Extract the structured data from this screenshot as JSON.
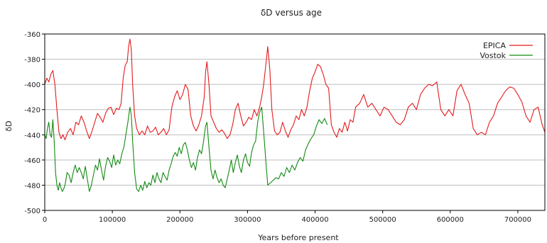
{
  "chart_data": {
    "type": "line",
    "title": "δD versus age",
    "xlabel": "Years before present",
    "ylabel": "δD",
    "xlim": [
      0,
      740000
    ],
    "ylim": [
      -500,
      -360
    ],
    "x_ticks": [
      0,
      100000,
      200000,
      300000,
      400000,
      500000,
      600000,
      700000
    ],
    "y_ticks": [
      -500,
      -480,
      -460,
      -440,
      -420,
      -400,
      -380,
      -360
    ],
    "grid": "horizontal",
    "legend_position": "top-right",
    "series": [
      {
        "name": "EPICA",
        "color": "#e41a1c",
        "points": [
          [
            0,
            -400
          ],
          [
            3000,
            -395
          ],
          [
            6000,
            -398
          ],
          [
            9000,
            -392
          ],
          [
            12000,
            -389
          ],
          [
            15000,
            -400
          ],
          [
            18000,
            -420
          ],
          [
            21000,
            -438
          ],
          [
            24000,
            -443
          ],
          [
            27000,
            -440
          ],
          [
            30000,
            -444
          ],
          [
            34000,
            -438
          ],
          [
            38000,
            -435
          ],
          [
            42000,
            -440
          ],
          [
            46000,
            -430
          ],
          [
            50000,
            -432
          ],
          [
            54000,
            -425
          ],
          [
            58000,
            -430
          ],
          [
            62000,
            -437
          ],
          [
            66000,
            -443
          ],
          [
            70000,
            -437
          ],
          [
            74000,
            -430
          ],
          [
            78000,
            -423
          ],
          [
            82000,
            -426
          ],
          [
            86000,
            -430
          ],
          [
            90000,
            -423
          ],
          [
            94000,
            -419
          ],
          [
            98000,
            -418
          ],
          [
            102000,
            -424
          ],
          [
            106000,
            -419
          ],
          [
            110000,
            -420
          ],
          [
            113000,
            -415
          ],
          [
            116000,
            -395
          ],
          [
            119000,
            -385
          ],
          [
            122000,
            -382
          ],
          [
            124000,
            -370
          ],
          [
            126000,
            -364
          ],
          [
            128000,
            -372
          ],
          [
            130000,
            -400
          ],
          [
            133000,
            -425
          ],
          [
            136000,
            -435
          ],
          [
            140000,
            -440
          ],
          [
            144000,
            -437
          ],
          [
            148000,
            -440
          ],
          [
            152000,
            -433
          ],
          [
            156000,
            -438
          ],
          [
            160000,
            -437
          ],
          [
            164000,
            -434
          ],
          [
            168000,
            -440
          ],
          [
            172000,
            -438
          ],
          [
            176000,
            -435
          ],
          [
            180000,
            -440
          ],
          [
            184000,
            -436
          ],
          [
            188000,
            -418
          ],
          [
            192000,
            -410
          ],
          [
            196000,
            -405
          ],
          [
            200000,
            -412
          ],
          [
            204000,
            -408
          ],
          [
            208000,
            -400
          ],
          [
            212000,
            -404
          ],
          [
            216000,
            -425
          ],
          [
            220000,
            -433
          ],
          [
            224000,
            -437
          ],
          [
            228000,
            -432
          ],
          [
            232000,
            -425
          ],
          [
            236000,
            -410
          ],
          [
            238000,
            -390
          ],
          [
            240000,
            -382
          ],
          [
            243000,
            -400
          ],
          [
            246000,
            -425
          ],
          [
            250000,
            -430
          ],
          [
            254000,
            -435
          ],
          [
            258000,
            -438
          ],
          [
            262000,
            -436
          ],
          [
            266000,
            -439
          ],
          [
            270000,
            -443
          ],
          [
            274000,
            -440
          ],
          [
            278000,
            -432
          ],
          [
            282000,
            -420
          ],
          [
            286000,
            -415
          ],
          [
            290000,
            -425
          ],
          [
            294000,
            -433
          ],
          [
            298000,
            -430
          ],
          [
            302000,
            -426
          ],
          [
            306000,
            -428
          ],
          [
            310000,
            -420
          ],
          [
            314000,
            -425
          ],
          [
            318000,
            -418
          ],
          [
            321000,
            -410
          ],
          [
            324000,
            -400
          ],
          [
            327000,
            -385
          ],
          [
            330000,
            -370
          ],
          [
            333000,
            -388
          ],
          [
            336000,
            -420
          ],
          [
            340000,
            -437
          ],
          [
            344000,
            -440
          ],
          [
            348000,
            -438
          ],
          [
            352000,
            -430
          ],
          [
            356000,
            -437
          ],
          [
            360000,
            -442
          ],
          [
            364000,
            -436
          ],
          [
            368000,
            -432
          ],
          [
            372000,
            -425
          ],
          [
            376000,
            -428
          ],
          [
            380000,
            -420
          ],
          [
            384000,
            -425
          ],
          [
            388000,
            -418
          ],
          [
            392000,
            -405
          ],
          [
            396000,
            -395
          ],
          [
            400000,
            -390
          ],
          [
            404000,
            -384
          ],
          [
            408000,
            -386
          ],
          [
            412000,
            -392
          ],
          [
            416000,
            -400
          ],
          [
            420000,
            -403
          ],
          [
            424000,
            -432
          ],
          [
            428000,
            -438
          ],
          [
            432000,
            -442
          ],
          [
            436000,
            -435
          ],
          [
            440000,
            -438
          ],
          [
            444000,
            -430
          ],
          [
            448000,
            -437
          ],
          [
            452000,
            -428
          ],
          [
            456000,
            -430
          ],
          [
            460000,
            -418
          ],
          [
            466000,
            -415
          ],
          [
            472000,
            -408
          ],
          [
            478000,
            -418
          ],
          [
            484000,
            -415
          ],
          [
            490000,
            -420
          ],
          [
            496000,
            -425
          ],
          [
            502000,
            -418
          ],
          [
            508000,
            -420
          ],
          [
            514000,
            -425
          ],
          [
            520000,
            -430
          ],
          [
            526000,
            -432
          ],
          [
            532000,
            -428
          ],
          [
            538000,
            -418
          ],
          [
            544000,
            -415
          ],
          [
            550000,
            -420
          ],
          [
            556000,
            -408
          ],
          [
            562000,
            -403
          ],
          [
            568000,
            -400
          ],
          [
            574000,
            -401
          ],
          [
            580000,
            -398
          ],
          [
            586000,
            -420
          ],
          [
            592000,
            -425
          ],
          [
            598000,
            -420
          ],
          [
            604000,
            -425
          ],
          [
            610000,
            -405
          ],
          [
            616000,
            -400
          ],
          [
            622000,
            -408
          ],
          [
            628000,
            -415
          ],
          [
            634000,
            -435
          ],
          [
            640000,
            -440
          ],
          [
            646000,
            -438
          ],
          [
            652000,
            -440
          ],
          [
            658000,
            -430
          ],
          [
            664000,
            -425
          ],
          [
            670000,
            -415
          ],
          [
            676000,
            -410
          ],
          [
            682000,
            -405
          ],
          [
            688000,
            -402
          ],
          [
            694000,
            -403
          ],
          [
            700000,
            -408
          ],
          [
            706000,
            -414
          ],
          [
            712000,
            -425
          ],
          [
            718000,
            -430
          ],
          [
            724000,
            -420
          ],
          [
            730000,
            -418
          ],
          [
            736000,
            -432
          ],
          [
            740000,
            -438
          ]
        ]
      },
      {
        "name": "Vostok",
        "color": "#138a13",
        "points": [
          [
            0,
            -440
          ],
          [
            2000,
            -443
          ],
          [
            4000,
            -435
          ],
          [
            6000,
            -430
          ],
          [
            8000,
            -440
          ],
          [
            10000,
            -442
          ],
          [
            12000,
            -428
          ],
          [
            14000,
            -445
          ],
          [
            16000,
            -470
          ],
          [
            18000,
            -480
          ],
          [
            20000,
            -484
          ],
          [
            22000,
            -478
          ],
          [
            24000,
            -482
          ],
          [
            26000,
            -485
          ],
          [
            28000,
            -483
          ],
          [
            30000,
            -480
          ],
          [
            33000,
            -470
          ],
          [
            36000,
            -472
          ],
          [
            39000,
            -478
          ],
          [
            42000,
            -470
          ],
          [
            45000,
            -464
          ],
          [
            48000,
            -470
          ],
          [
            51000,
            -466
          ],
          [
            54000,
            -470
          ],
          [
            57000,
            -475
          ],
          [
            60000,
            -465
          ],
          [
            63000,
            -475
          ],
          [
            66000,
            -485
          ],
          [
            69000,
            -480
          ],
          [
            72000,
            -472
          ],
          [
            75000,
            -464
          ],
          [
            78000,
            -468
          ],
          [
            81000,
            -459
          ],
          [
            84000,
            -468
          ],
          [
            87000,
            -476
          ],
          [
            90000,
            -465
          ],
          [
            93000,
            -458
          ],
          [
            96000,
            -461
          ],
          [
            99000,
            -466
          ],
          [
            102000,
            -456
          ],
          [
            105000,
            -464
          ],
          [
            108000,
            -460
          ],
          [
            111000,
            -463
          ],
          [
            114000,
            -455
          ],
          [
            117000,
            -450
          ],
          [
            120000,
            -440
          ],
          [
            123000,
            -430
          ],
          [
            126000,
            -418
          ],
          [
            128000,
            -424
          ],
          [
            130000,
            -445
          ],
          [
            133000,
            -470
          ],
          [
            136000,
            -483
          ],
          [
            139000,
            -485
          ],
          [
            142000,
            -480
          ],
          [
            145000,
            -484
          ],
          [
            148000,
            -477
          ],
          [
            151000,
            -482
          ],
          [
            154000,
            -478
          ],
          [
            157000,
            -480
          ],
          [
            160000,
            -472
          ],
          [
            163000,
            -478
          ],
          [
            166000,
            -470
          ],
          [
            169000,
            -475
          ],
          [
            172000,
            -478
          ],
          [
            175000,
            -470
          ],
          [
            178000,
            -473
          ],
          [
            181000,
            -476
          ],
          [
            184000,
            -468
          ],
          [
            187000,
            -463
          ],
          [
            190000,
            -457
          ],
          [
            193000,
            -454
          ],
          [
            196000,
            -457
          ],
          [
            199000,
            -450
          ],
          [
            202000,
            -455
          ],
          [
            205000,
            -448
          ],
          [
            208000,
            -446
          ],
          [
            211000,
            -452
          ],
          [
            214000,
            -460
          ],
          [
            217000,
            -466
          ],
          [
            220000,
            -462
          ],
          [
            223000,
            -468
          ],
          [
            226000,
            -458
          ],
          [
            229000,
            -452
          ],
          [
            232000,
            -455
          ],
          [
            235000,
            -445
          ],
          [
            238000,
            -433
          ],
          [
            240000,
            -430
          ],
          [
            243000,
            -450
          ],
          [
            246000,
            -468
          ],
          [
            249000,
            -475
          ],
          [
            252000,
            -468
          ],
          [
            255000,
            -474
          ],
          [
            258000,
            -478
          ],
          [
            261000,
            -475
          ],
          [
            264000,
            -480
          ],
          [
            267000,
            -482
          ],
          [
            270000,
            -475
          ],
          [
            273000,
            -468
          ],
          [
            276000,
            -460
          ],
          [
            279000,
            -470
          ],
          [
            282000,
            -462
          ],
          [
            285000,
            -456
          ],
          [
            288000,
            -465
          ],
          [
            291000,
            -470
          ],
          [
            294000,
            -460
          ],
          [
            297000,
            -455
          ],
          [
            300000,
            -462
          ],
          [
            303000,
            -465
          ],
          [
            306000,
            -454
          ],
          [
            309000,
            -448
          ],
          [
            312000,
            -445
          ],
          [
            315000,
            -430
          ],
          [
            318000,
            -422
          ],
          [
            321000,
            -418
          ],
          [
            324000,
            -438
          ],
          [
            327000,
            -460
          ],
          [
            330000,
            -480
          ],
          [
            334000,
            -478
          ],
          [
            338000,
            -476
          ],
          [
            342000,
            -474
          ],
          [
            346000,
            -475
          ],
          [
            350000,
            -470
          ],
          [
            354000,
            -473
          ],
          [
            358000,
            -466
          ],
          [
            362000,
            -470
          ],
          [
            366000,
            -464
          ],
          [
            370000,
            -468
          ],
          [
            374000,
            -462
          ],
          [
            378000,
            -458
          ],
          [
            382000,
            -461
          ],
          [
            386000,
            -452
          ],
          [
            390000,
            -447
          ],
          [
            394000,
            -443
          ],
          [
            398000,
            -440
          ],
          [
            402000,
            -433
          ],
          [
            406000,
            -428
          ],
          [
            410000,
            -431
          ],
          [
            414000,
            -427
          ],
          [
            418000,
            -432
          ]
        ]
      }
    ]
  }
}
